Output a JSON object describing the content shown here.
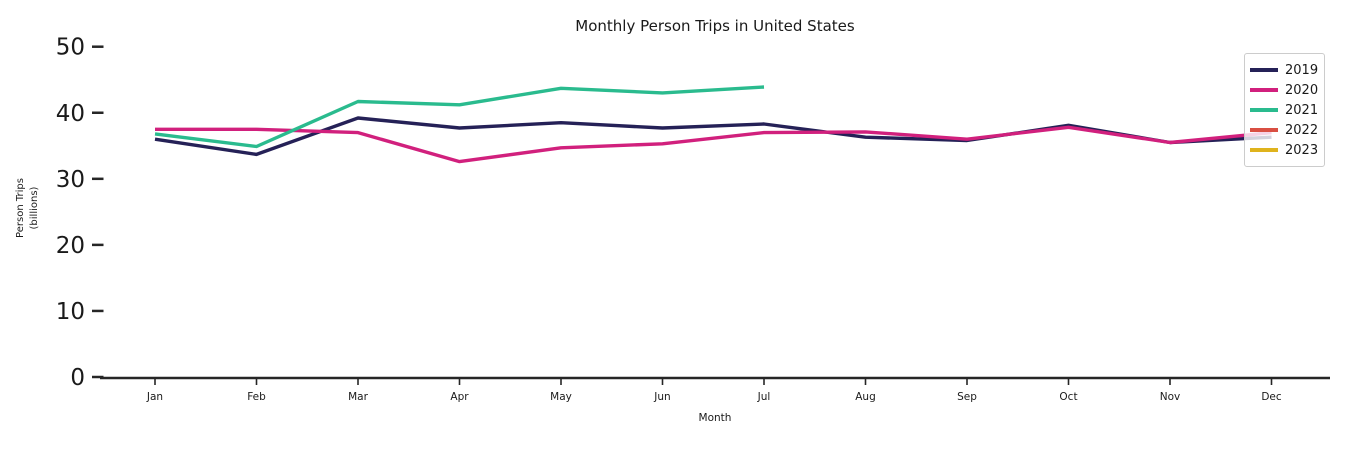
{
  "chart_data": {
    "type": "line",
    "title": "Monthly Person Trips in United States",
    "xlabel": "Month",
    "ylabel": "Person Trips (billions)",
    "ylabel_lines": [
      "Person Trips",
      "(billions)"
    ],
    "categories": [
      "Jan",
      "Feb",
      "Mar",
      "Apr",
      "May",
      "Jun",
      "Jul",
      "Aug",
      "Sep",
      "Oct",
      "Nov",
      "Dec"
    ],
    "yticks": [
      0,
      10,
      20,
      30,
      40,
      50
    ],
    "ylim": [
      0,
      50
    ],
    "grid": false,
    "legend_position": "upper right",
    "axis_color": "#262626",
    "text_color": "#1a1a1a",
    "series": [
      {
        "name": "2019",
        "color": "#252157",
        "values": [
          36.0,
          33.7,
          39.2,
          37.7,
          38.5,
          37.7,
          38.3,
          36.3,
          35.8,
          38.1,
          35.5,
          36.3
        ]
      },
      {
        "name": "2020",
        "color": "#d1207d",
        "values": [
          37.5,
          37.5,
          37.0,
          32.6,
          34.7,
          35.3,
          37.0,
          37.1,
          36.0,
          37.8,
          35.5,
          37.0
        ]
      },
      {
        "name": "2021",
        "color": "#2abb8e",
        "values": [
          36.8,
          34.9,
          41.7,
          41.2,
          43.7,
          43.0,
          43.9,
          null,
          null,
          null,
          null,
          null
        ]
      },
      {
        "name": "2022",
        "color": "#d94f43",
        "values": []
      },
      {
        "name": "2023",
        "color": "#dfb31d",
        "values": []
      }
    ]
  }
}
